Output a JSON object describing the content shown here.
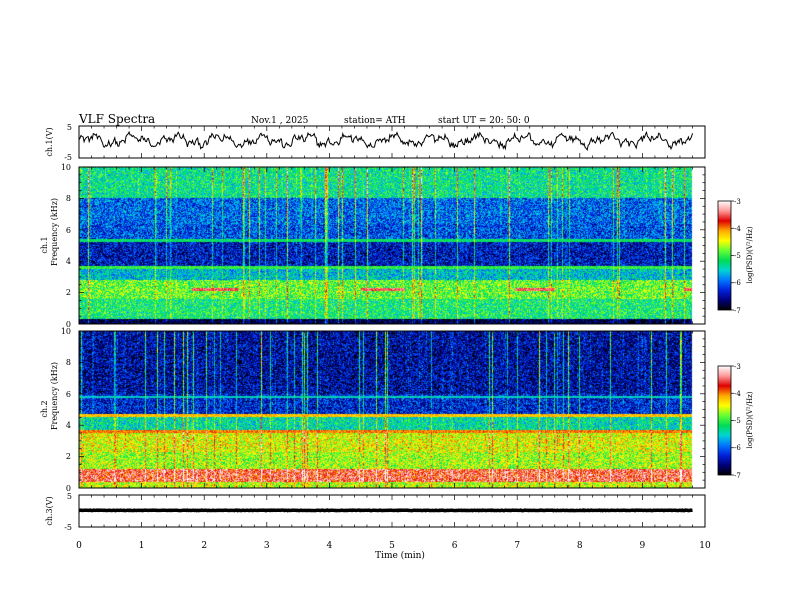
{
  "header": {
    "title": "VLF  Spectra",
    "date": "Nov.1  , 2025",
    "station": "station= ATH",
    "start": "start  UT  =    20: 50: 0"
  },
  "colors": {
    "background": "#ffffff",
    "trace": "#000000",
    "colormap": [
      "#ffffff",
      "#ff9a9a",
      "#e10000",
      "#ffaa00",
      "#ffff00",
      "#66ff33",
      "#00dd55",
      "#00d5d5",
      "#0077ff",
      "#0022dd",
      "#00007a",
      "#000000"
    ]
  },
  "chart_data": [
    {
      "type": "line",
      "name": "ch1-waveform",
      "ylabel": "ch.1(V)",
      "ylim": [
        -5,
        5
      ],
      "ytick_labels": [
        "5",
        "-5"
      ],
      "xlim": [
        0,
        10
      ],
      "series": [
        {
          "name": "ch.1",
          "baseline": 0.5,
          "amplitude": 2.2,
          "pattern": "irregular oscillation"
        }
      ]
    },
    {
      "type": "heatmap",
      "name": "ch1-spectrogram",
      "ylabel": "Frequency  (kHz)",
      "channel_label": "ch.1",
      "ylim": [
        0,
        10
      ],
      "ytick_labels": [
        "0",
        "2",
        "4",
        "6",
        "8",
        "10"
      ],
      "xlim": [
        0,
        10
      ],
      "data_end_min": 9.8,
      "bands": [
        {
          "f0": 0,
          "f1": 0.35,
          "level": -6.8
        },
        {
          "f0": 0.35,
          "f1": 1.6,
          "level": -5.2
        },
        {
          "f0": 1.6,
          "f1": 2.8,
          "level": -4.9
        },
        {
          "f0": 2.8,
          "f1": 3.6,
          "level": -5.6
        },
        {
          "f0": 3.6,
          "f1": 5.2,
          "level": -6.4
        },
        {
          "f0": 5.2,
          "f1": 6.4,
          "level": -6.1
        },
        {
          "f0": 6.4,
          "f1": 8.0,
          "level": -6.0
        },
        {
          "f0": 8.0,
          "f1": 10,
          "level": -5.3
        }
      ],
      "lines": [
        {
          "f": 2.2,
          "t0": 1.8,
          "t1": 2.55,
          "level": -3.5
        },
        {
          "f": 2.2,
          "t0": 4.5,
          "t1": 5.2,
          "level": -3.5
        },
        {
          "f": 2.2,
          "t0": 6.95,
          "t1": 7.6,
          "level": -3.5
        },
        {
          "f": 2.2,
          "t0": 9.65,
          "t1": 9.8,
          "level": -3.5
        },
        {
          "f": 3.6,
          "t0": 0,
          "t1": 9.8,
          "level": -5.0
        },
        {
          "f": 5.3,
          "t0": 0,
          "t1": 9.8,
          "level": -5.2
        },
        {
          "f": 0.5,
          "t0": 0,
          "t1": 9.8,
          "level": -6.8
        }
      ],
      "colorbar": {
        "label": "log(PSD)(V²/Hz)",
        "range": [
          -7,
          -3
        ],
        "tick_labels": [
          "-3",
          "-4",
          "-5",
          "-6",
          "-7"
        ]
      }
    },
    {
      "type": "heatmap",
      "name": "ch2-spectrogram",
      "ylabel": "Frequency  (kHz)",
      "channel_label": "ch.2",
      "ylim": [
        0,
        10
      ],
      "ytick_labels": [
        "0",
        "2",
        "4",
        "6",
        "8",
        "10"
      ],
      "xlim": [
        0,
        10
      ],
      "data_end_min": 9.8,
      "bands": [
        {
          "f0": 0,
          "f1": 0.4,
          "level": -4.6
        },
        {
          "f0": 0.4,
          "f1": 1.2,
          "level": -3.6
        },
        {
          "f0": 1.2,
          "f1": 2.3,
          "level": -4.7
        },
        {
          "f0": 2.3,
          "f1": 3.6,
          "level": -4.5
        },
        {
          "f0": 3.6,
          "f1": 4.6,
          "level": -5.4
        },
        {
          "f0": 4.6,
          "f1": 6.0,
          "level": -6.3
        },
        {
          "f0": 6.0,
          "f1": 10,
          "level": -6.5
        }
      ],
      "lines": [
        {
          "f": 4.6,
          "t0": 0,
          "t1": 9.8,
          "level": -4.2
        },
        {
          "f": 5.8,
          "t0": 0,
          "t1": 9.8,
          "level": -5.5
        },
        {
          "f": 3.6,
          "t0": 0,
          "t1": 9.8,
          "level": -4.0
        }
      ],
      "colorbar": {
        "label": "log(PSD)(V²/Hz)",
        "range": [
          -7,
          -3
        ],
        "tick_labels": [
          "-3",
          "-4",
          "-5",
          "-6",
          "-7"
        ]
      }
    },
    {
      "type": "line",
      "name": "ch3-waveform",
      "ylabel": "ch.3(V)",
      "ylim": [
        -5,
        5
      ],
      "ytick_labels": [
        "5",
        "-5"
      ],
      "xlim": [
        0,
        10
      ],
      "series": [
        {
          "name": "ch.3",
          "baseline": 0.2,
          "amplitude": 0.15,
          "pattern": "flat"
        }
      ]
    }
  ],
  "xaxis": {
    "label": "Time  (min)",
    "range": [
      0,
      10
    ],
    "tick_labels": [
      "0",
      "1",
      "2",
      "3",
      "4",
      "5",
      "6",
      "7",
      "8",
      "9",
      "10"
    ]
  }
}
